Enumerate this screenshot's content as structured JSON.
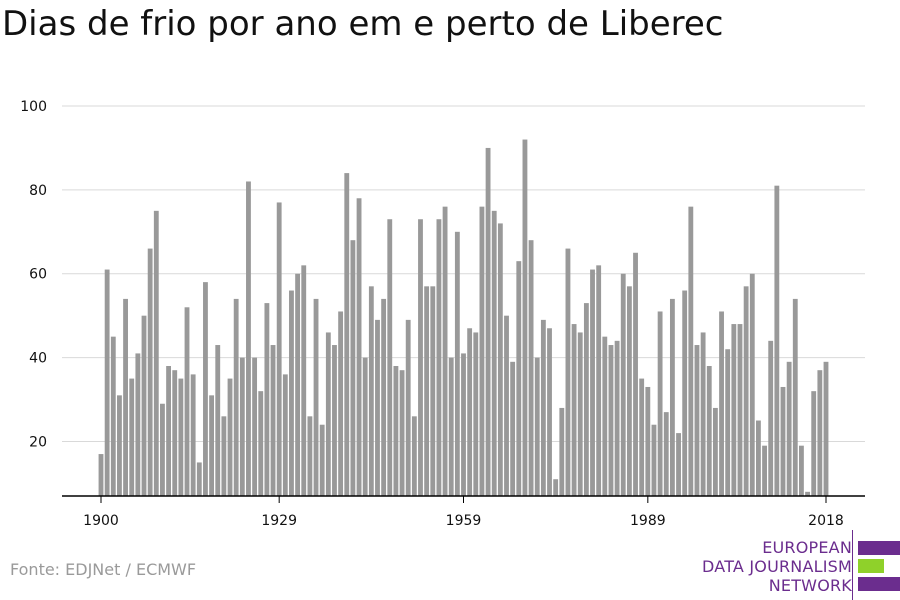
{
  "title": "Dias de frio por ano em e perto de Liberec",
  "source": "Fonte: EDJNet / ECMWF",
  "logo": {
    "line1": "EUROPEAN",
    "line2": "DATA JOURNALISM",
    "line3": "NETWORK",
    "colors": {
      "text": "#6b2d8e",
      "bar1": "#6b2d8e",
      "bar2": "#8fd12a",
      "bar3": "#6b2d8e"
    }
  },
  "chart_data": {
    "type": "bar",
    "title": "Dias de frio por ano em e perto de Liberec",
    "xlabel": "",
    "ylabel": "",
    "bar_color": "#999999",
    "grid": true,
    "ylim": [
      7,
      100
    ],
    "yticks": [
      20,
      40,
      60,
      80,
      100
    ],
    "xticks": [
      1900,
      1929,
      1959,
      1989,
      2018
    ],
    "x": [
      1900,
      1901,
      1902,
      1903,
      1904,
      1905,
      1906,
      1907,
      1908,
      1909,
      1910,
      1911,
      1912,
      1913,
      1914,
      1915,
      1916,
      1917,
      1918,
      1919,
      1920,
      1921,
      1922,
      1923,
      1924,
      1925,
      1926,
      1927,
      1928,
      1929,
      1930,
      1931,
      1932,
      1933,
      1934,
      1935,
      1936,
      1937,
      1938,
      1939,
      1940,
      1941,
      1942,
      1943,
      1944,
      1945,
      1946,
      1947,
      1948,
      1949,
      1950,
      1951,
      1952,
      1953,
      1954,
      1955,
      1956,
      1957,
      1958,
      1959,
      1960,
      1961,
      1962,
      1963,
      1964,
      1965,
      1966,
      1967,
      1968,
      1969,
      1970,
      1971,
      1972,
      1973,
      1974,
      1975,
      1976,
      1977,
      1978,
      1979,
      1980,
      1981,
      1982,
      1983,
      1984,
      1985,
      1986,
      1987,
      1988,
      1989,
      1990,
      1991,
      1992,
      1993,
      1994,
      1995,
      1996,
      1997,
      1998,
      1999,
      2000,
      2001,
      2002,
      2003,
      2004,
      2005,
      2006,
      2007,
      2008,
      2009,
      2010,
      2011,
      2012,
      2013,
      2014,
      2015,
      2016,
      2017,
      2018
    ],
    "values": [
      17,
      61,
      45,
      31,
      54,
      35,
      41,
      50,
      66,
      75,
      29,
      38,
      37,
      35,
      52,
      36,
      15,
      58,
      31,
      43,
      26,
      35,
      54,
      40,
      82,
      40,
      32,
      53,
      43,
      77,
      36,
      56,
      60,
      62,
      26,
      54,
      24,
      46,
      43,
      51,
      84,
      68,
      78,
      40,
      57,
      49,
      54,
      73,
      38,
      37,
      49,
      26,
      73,
      57,
      57,
      73,
      76,
      40,
      70,
      41,
      47,
      46,
      76,
      90,
      75,
      72,
      50,
      39,
      63,
      92,
      68,
      40,
      49,
      47,
      11,
      28,
      66,
      48,
      46,
      53,
      61,
      62,
      45,
      43,
      44,
      60,
      57,
      65,
      35,
      33,
      24,
      51,
      27,
      54,
      22,
      56,
      76,
      43,
      46,
      38,
      28,
      51,
      42,
      48,
      48,
      57,
      60,
      25,
      19,
      44,
      81,
      33,
      39,
      54,
      19,
      8,
      32,
      37,
      39
    ]
  }
}
